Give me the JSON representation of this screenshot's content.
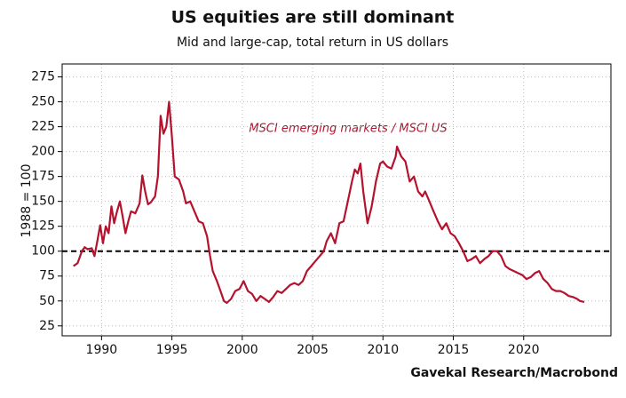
{
  "chart_data": {
    "type": "line",
    "title": "US equities are still dominant",
    "subtitle": "Mid and large-cap, total return in US dollars",
    "ylabel": "1988 = 100",
    "annotation": "MSCI emerging markets / MSCI US",
    "source": "Gavekal Research/Macrobond",
    "reference_line": 100,
    "grid": true,
    "xlim": [
      1987.2,
      2026.2
    ],
    "ylim": [
      15,
      288
    ],
    "xticks": [
      1990,
      1995,
      2000,
      2005,
      2010,
      2015,
      2020
    ],
    "yticks": [
      25,
      50,
      75,
      100,
      125,
      150,
      175,
      200,
      225,
      250,
      275
    ],
    "x": [
      1988.0,
      1988.3,
      1988.6,
      1988.8,
      1989.0,
      1989.3,
      1989.5,
      1989.7,
      1989.9,
      1990.1,
      1990.3,
      1990.5,
      1990.7,
      1990.9,
      1991.1,
      1991.3,
      1991.5,
      1991.7,
      1991.9,
      1992.1,
      1992.4,
      1992.7,
      1992.9,
      1993.1,
      1993.3,
      1993.5,
      1993.8,
      1994.0,
      1994.2,
      1994.4,
      1994.6,
      1994.8,
      1995.0,
      1995.2,
      1995.5,
      1995.8,
      1996.0,
      1996.3,
      1996.6,
      1996.9,
      1997.2,
      1997.5,
      1997.7,
      1997.9,
      1998.2,
      1998.5,
      1998.7,
      1998.9,
      1999.2,
      1999.5,
      1999.8,
      2000.1,
      2000.4,
      2000.7,
      2001.0,
      2001.3,
      2001.6,
      2001.9,
      2002.2,
      2002.5,
      2002.8,
      2003.1,
      2003.4,
      2003.7,
      2004.0,
      2004.3,
      2004.6,
      2004.9,
      2005.2,
      2005.5,
      2005.8,
      2006.0,
      2006.3,
      2006.6,
      2006.9,
      2007.2,
      2007.5,
      2007.8,
      2008.0,
      2008.2,
      2008.4,
      2008.6,
      2008.9,
      2009.2,
      2009.5,
      2009.8,
      2010.0,
      2010.3,
      2010.6,
      2010.9,
      2011.0,
      2011.3,
      2011.6,
      2011.9,
      2012.2,
      2012.5,
      2012.8,
      2013.0,
      2013.3,
      2013.6,
      2013.9,
      2014.2,
      2014.5,
      2014.8,
      2015.1,
      2015.4,
      2015.7,
      2016.0,
      2016.3,
      2016.6,
      2016.9,
      2017.2,
      2017.5,
      2017.8,
      2018.1,
      2018.4,
      2018.7,
      2019.0,
      2019.3,
      2019.6,
      2019.9,
      2020.2,
      2020.5,
      2020.8,
      2021.1,
      2021.4,
      2021.7,
      2022.0,
      2022.3,
      2022.6,
      2022.9,
      2023.2,
      2023.5,
      2023.8,
      2024.0,
      2024.3
    ],
    "series": [
      {
        "color": "#b5122e",
        "values": [
          85,
          88,
          100,
          104,
          102,
          103,
          95,
          110,
          126,
          108,
          125,
          118,
          145,
          128,
          140,
          150,
          135,
          118,
          130,
          140,
          138,
          148,
          176,
          160,
          147,
          149,
          155,
          175,
          236,
          218,
          225,
          250,
          215,
          175,
          172,
          160,
          148,
          150,
          140,
          130,
          128,
          115,
          96,
          80,
          70,
          58,
          50,
          48,
          52,
          60,
          62,
          70,
          60,
          57,
          50,
          55,
          52,
          49,
          54,
          60,
          58,
          62,
          66,
          68,
          66,
          70,
          80,
          85,
          90,
          95,
          100,
          110,
          118,
          108,
          128,
          130,
          150,
          170,
          182,
          178,
          188,
          160,
          128,
          145,
          170,
          188,
          190,
          185,
          183,
          195,
          205,
          195,
          190,
          170,
          175,
          160,
          155,
          160,
          150,
          140,
          130,
          122,
          128,
          118,
          115,
          108,
          100,
          90,
          92,
          95,
          88,
          92,
          95,
          100,
          100,
          95,
          85,
          82,
          80,
          78,
          76,
          72,
          74,
          78,
          80,
          72,
          68,
          62,
          60,
          60,
          58,
          55,
          54,
          52,
          50,
          49
        ]
      }
    ]
  }
}
